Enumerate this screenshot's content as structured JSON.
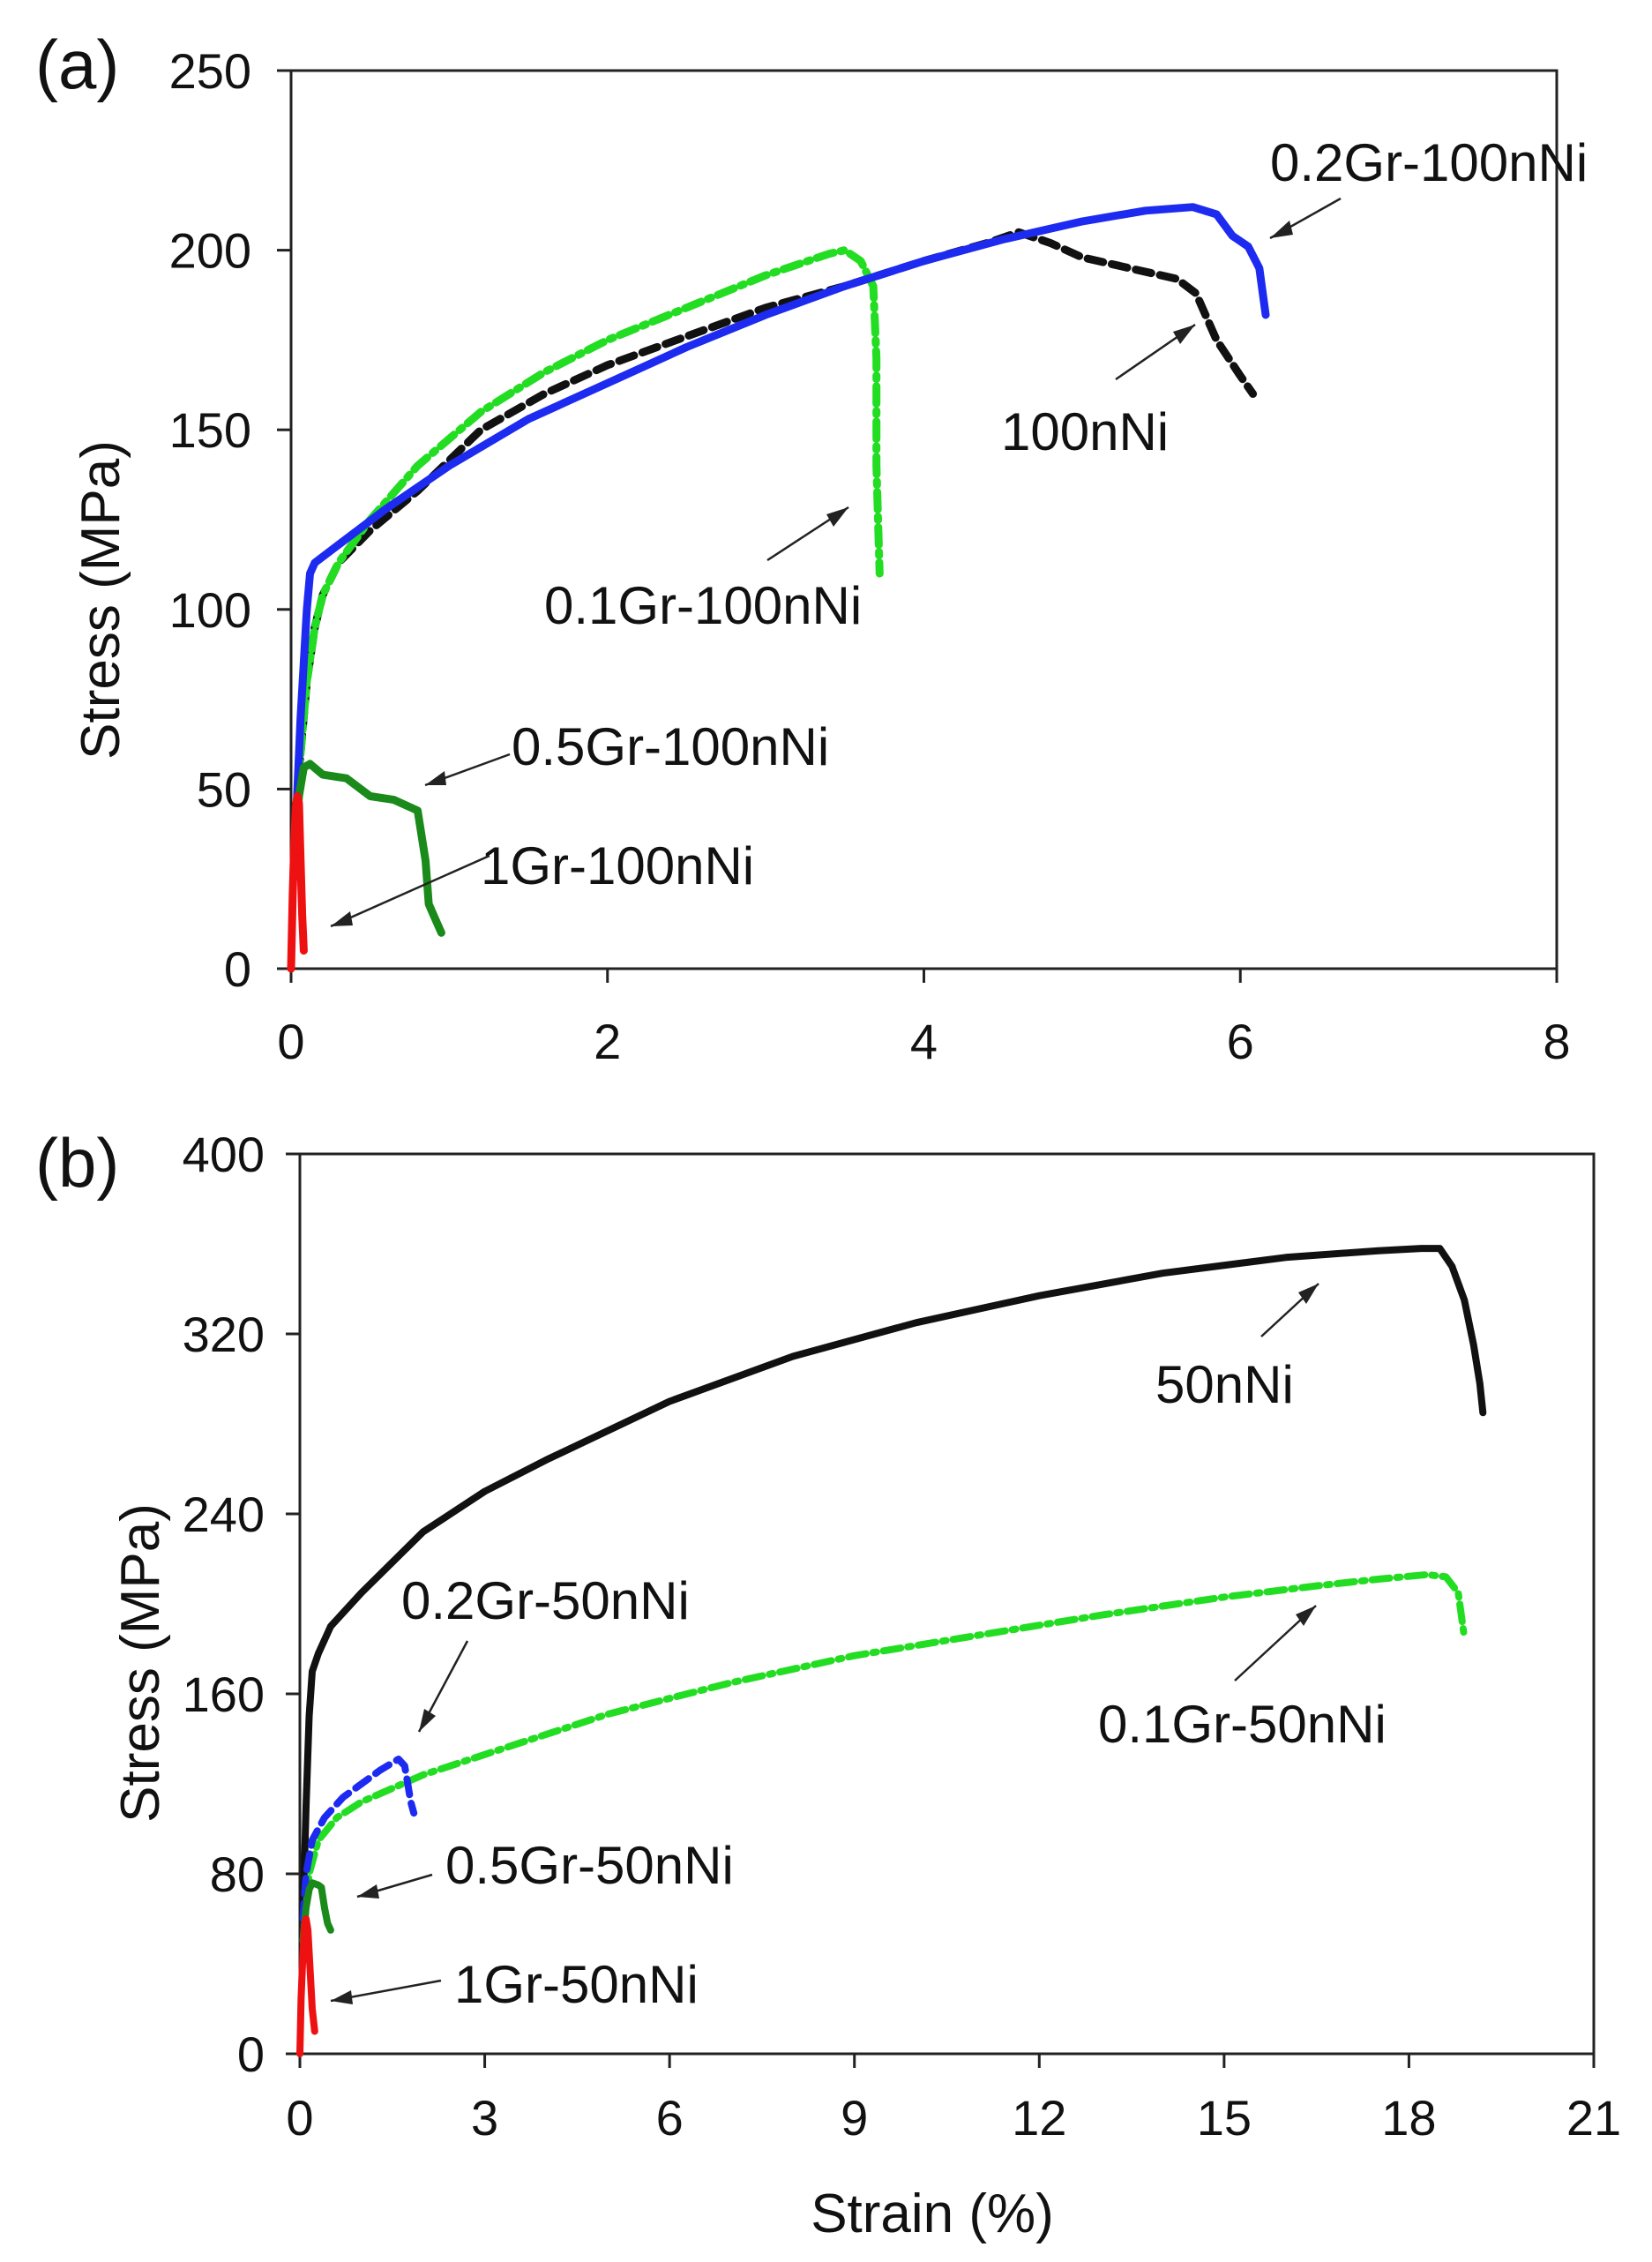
{
  "chart_data": [
    {
      "type": "line",
      "panel_label": "(a)",
      "xlabel": "",
      "ylabel": "Stress (MPa)",
      "xlim": [
        0,
        8
      ],
      "ylim": [
        0,
        250
      ],
      "x_ticks": [
        "0",
        "2",
        "4",
        "6",
        "8"
      ],
      "y_ticks": [
        "0",
        "50",
        "100",
        "150",
        "200",
        "250"
      ],
      "grid": false,
      "series": [
        {
          "name": "100nNi",
          "color": "#111111",
          "dash": "dashed",
          "x": [
            0.03,
            0.06,
            0.1,
            0.15,
            0.2,
            0.3,
            0.5,
            0.8,
            1.2,
            1.6,
            2.0,
            2.5,
            3.0,
            3.5,
            4.0,
            4.4,
            4.6,
            4.8,
            5.0,
            5.3,
            5.6,
            5.72,
            5.85,
            6.0,
            6.08
          ],
          "y": [
            40,
            60,
            80,
            95,
            104,
            113,
            122,
            133,
            150,
            160,
            168,
            176,
            184,
            190,
            197,
            202,
            205,
            202,
            198,
            195,
            192,
            188,
            175,
            165,
            160
          ]
        },
        {
          "name": "0.1Gr-100nNi",
          "color": "#22dd22",
          "dash": "dashdot",
          "x": [
            0.03,
            0.06,
            0.1,
            0.15,
            0.2,
            0.3,
            0.5,
            0.8,
            1.2,
            1.6,
            2.0,
            2.5,
            3.0,
            3.4,
            3.5,
            3.6,
            3.68,
            3.7,
            3.7,
            3.72
          ],
          "y": [
            40,
            60,
            80,
            95,
            104,
            113,
            125,
            140,
            155,
            166,
            175,
            184,
            193,
            199,
            200,
            197,
            190,
            170,
            140,
            110
          ]
        },
        {
          "name": "0.2Gr-100nNi",
          "color": "#1d2bf0",
          "dash": "solid",
          "x": [
            0.03,
            0.06,
            0.1,
            0.12,
            0.15,
            0.3,
            0.6,
            1.0,
            1.5,
            2.0,
            2.5,
            3.0,
            3.5,
            4.0,
            4.5,
            5.0,
            5.4,
            5.7,
            5.85,
            5.95,
            6.05,
            6.12,
            6.16
          ],
          "y": [
            40,
            70,
            100,
            110,
            113,
            118,
            128,
            140,
            153,
            163,
            173,
            182,
            190,
            197,
            203,
            208,
            211,
            212,
            210,
            204,
            201,
            195,
            182
          ]
        },
        {
          "name": "0.5Gr-100nNi",
          "color": "#1a8a1a",
          "dash": "solid",
          "x": [
            0.02,
            0.05,
            0.08,
            0.12,
            0.2,
            0.35,
            0.5,
            0.65,
            0.8,
            0.85,
            0.87,
            0.9,
            0.95
          ],
          "y": [
            30,
            48,
            56,
            57,
            54,
            53,
            48,
            47,
            44,
            30,
            18,
            15,
            10
          ]
        },
        {
          "name": "1Gr-100nNi",
          "color": "#ee1111",
          "dash": "solid",
          "x": [
            0.0,
            0.01,
            0.02,
            0.03,
            0.04,
            0.05,
            0.06,
            0.07,
            0.08
          ],
          "y": [
            0,
            20,
            35,
            45,
            48,
            46,
            30,
            15,
            5
          ]
        }
      ],
      "annotations": [
        {
          "text": "0.2Gr-100nNi",
          "target_series": "0.2Gr-100nNi"
        },
        {
          "text": "100nNi",
          "target_series": "100nNi"
        },
        {
          "text": "0.1Gr-100nNi",
          "target_series": "0.1Gr-100nNi"
        },
        {
          "text": "0.5Gr-100nNi",
          "target_series": "0.5Gr-100nNi"
        },
        {
          "text": "1Gr-100nNi",
          "target_series": "1Gr-100nNi"
        }
      ]
    },
    {
      "type": "line",
      "panel_label": "(b)",
      "xlabel": "Strain (%)",
      "ylabel": "Stress (MPa)",
      "xlim": [
        0,
        21
      ],
      "ylim": [
        0,
        400
      ],
      "x_ticks": [
        "0",
        "3",
        "6",
        "9",
        "12",
        "15",
        "18",
        "21"
      ],
      "y_ticks": [
        "0",
        "80",
        "160",
        "240",
        "320",
        "400"
      ],
      "grid": false,
      "series": [
        {
          "name": "50nNi",
          "color": "#111111",
          "dash": "solid",
          "x": [
            0.05,
            0.1,
            0.15,
            0.2,
            0.3,
            0.5,
            1.0,
            2.0,
            3.0,
            4.0,
            6.0,
            8.0,
            10.0,
            12.0,
            14.0,
            16.0,
            17.5,
            18.2,
            18.5,
            18.7,
            18.9,
            19.05,
            19.15,
            19.2
          ],
          "y": [
            60,
            110,
            150,
            170,
            178,
            190,
            205,
            232,
            250,
            264,
            290,
            310,
            325,
            337,
            347,
            354,
            357,
            358,
            358,
            350,
            335,
            315,
            298,
            285
          ]
        },
        {
          "name": "0.1Gr-50nNi",
          "color": "#22dd22",
          "dash": "dashdot",
          "x": [
            0.05,
            0.15,
            0.3,
            0.6,
            1.0,
            2.0,
            3.0,
            5.0,
            7.0,
            9.0,
            11.0,
            13.0,
            15.0,
            16.5,
            17.5,
            18.3,
            18.6,
            18.8,
            18.85,
            18.9
          ],
          "y": [
            50,
            80,
            95,
            105,
            112,
            124,
            133,
            151,
            165,
            177,
            186,
            195,
            203,
            208,
            211,
            213,
            212,
            205,
            195,
            185
          ]
        },
        {
          "name": "0.2Gr-50nNi",
          "color": "#1d2bf0",
          "dash": "dashed",
          "x": [
            0.05,
            0.1,
            0.2,
            0.4,
            0.7,
            1.0,
            1.3,
            1.6,
            1.7,
            1.75,
            1.8,
            1.85
          ],
          "y": [
            60,
            80,
            95,
            105,
            114,
            120,
            126,
            131,
            128,
            120,
            112,
            107
          ]
        },
        {
          "name": "0.5Gr-50nNi",
          "color": "#1a8a1a",
          "dash": "solid",
          "x": [
            0.05,
            0.1,
            0.15,
            0.2,
            0.3,
            0.35,
            0.4,
            0.45,
            0.5
          ],
          "y": [
            50,
            65,
            73,
            76,
            75,
            74,
            65,
            58,
            55
          ]
        },
        {
          "name": "1Gr-50nNi",
          "color": "#ee1111",
          "dash": "solid",
          "x": [
            0.0,
            0.02,
            0.05,
            0.08,
            0.1,
            0.13,
            0.16,
            0.2,
            0.24
          ],
          "y": [
            0,
            25,
            45,
            58,
            60,
            55,
            40,
            20,
            10
          ]
        }
      ],
      "annotations": [
        {
          "text": "50nNi",
          "target_series": "50nNi"
        },
        {
          "text": "0.2Gr-50nNi",
          "target_series": "0.2Gr-50nNi"
        },
        {
          "text": "0.1Gr-50nNi",
          "target_series": "0.1Gr-50nNi"
        },
        {
          "text": "0.5Gr-50nNi",
          "target_series": "0.5Gr-50nNi"
        },
        {
          "text": "1Gr-50nNi",
          "target_series": "1Gr-50nNi"
        }
      ]
    }
  ]
}
